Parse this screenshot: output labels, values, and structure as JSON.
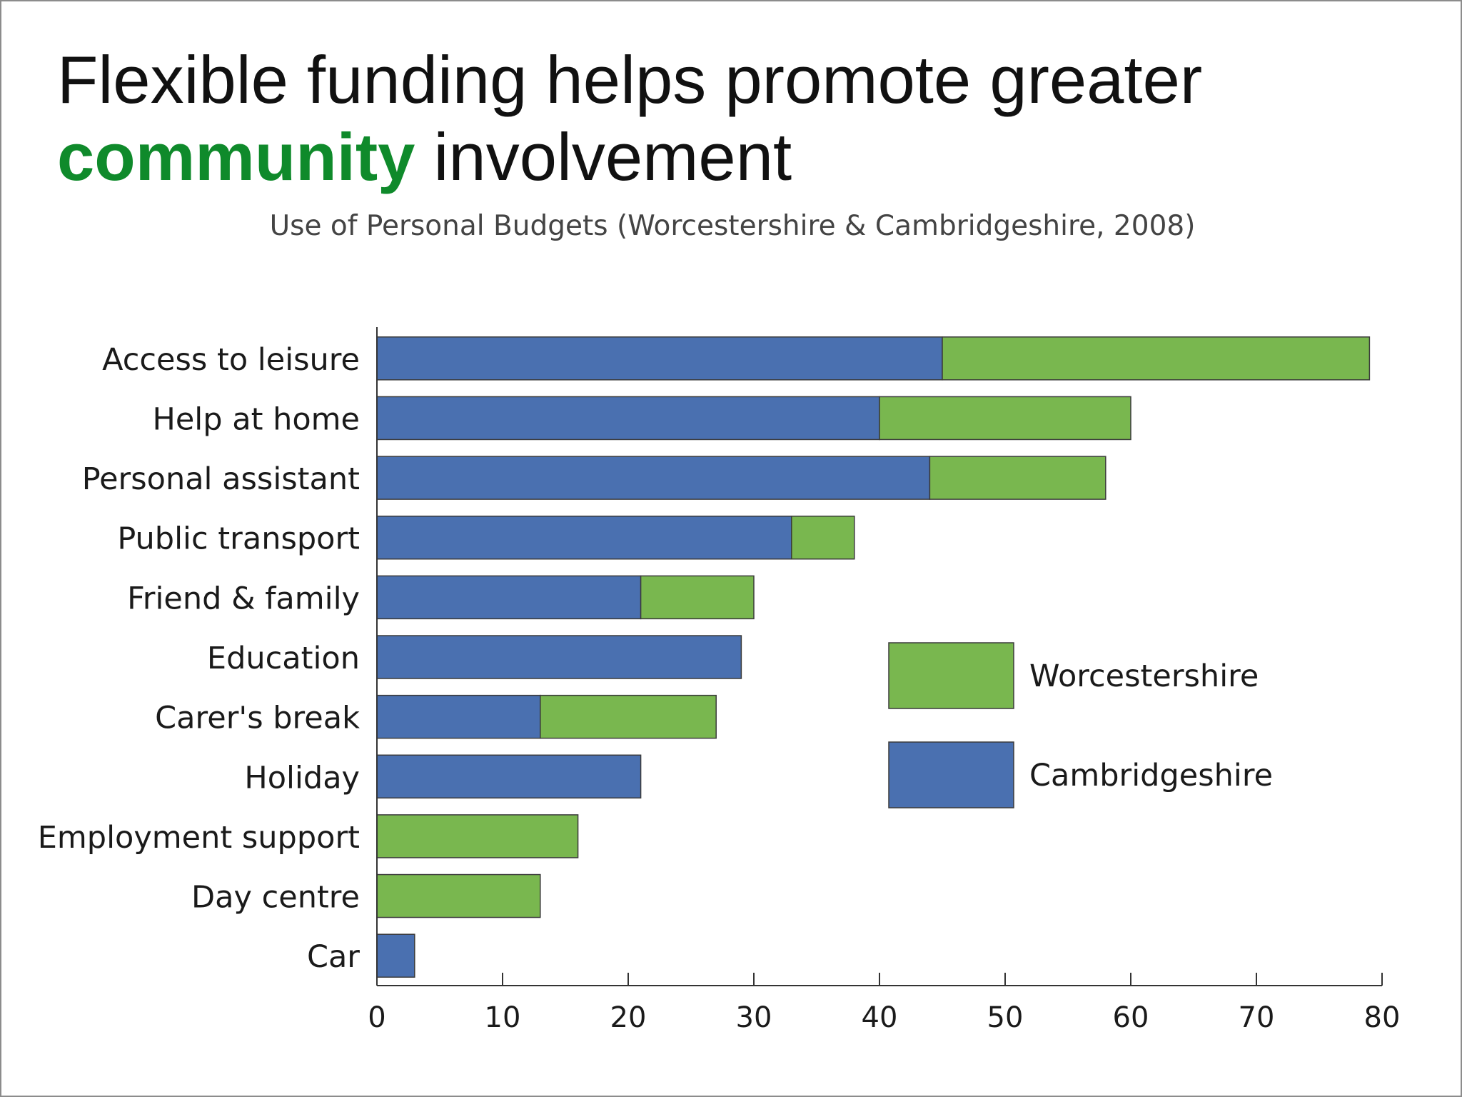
{
  "slide": {
    "title_part1": "Flexible funding helps promote greater",
    "title_accent": "community",
    "title_part2": "involvement",
    "accent_color": "#0f8a2b"
  },
  "chart_data": {
    "type": "bar",
    "orientation": "horizontal",
    "stacked": true,
    "title": "Use of Personal Budgets (Worcestershire & Cambridgeshire, 2008)",
    "xlabel": "",
    "ylabel": "",
    "categories": [
      "Access to leisure",
      "Help at home",
      "Personal assistant",
      "Public transport",
      "Friend & family",
      "Education",
      "Carer's break",
      "Holiday",
      "Employment support",
      "Day centre",
      "Car"
    ],
    "series": [
      {
        "name": "Cambridgeshire",
        "color": "#4a70b0",
        "values": [
          45,
          40,
          44,
          33,
          21,
          29,
          13,
          21,
          0,
          0,
          3
        ]
      },
      {
        "name": "Worcestershire",
        "color": "#79b74f",
        "values": [
          34,
          20,
          14,
          5,
          9,
          0,
          14,
          0,
          16,
          13,
          0
        ]
      }
    ],
    "xlim": [
      0,
      80
    ],
    "xticks": [
      0,
      10,
      20,
      30,
      40,
      50,
      60,
      70,
      80
    ],
    "grid": false,
    "legend": {
      "placement": "right",
      "entries": [
        "Worcestershire",
        "Cambridgeshire"
      ]
    }
  }
}
